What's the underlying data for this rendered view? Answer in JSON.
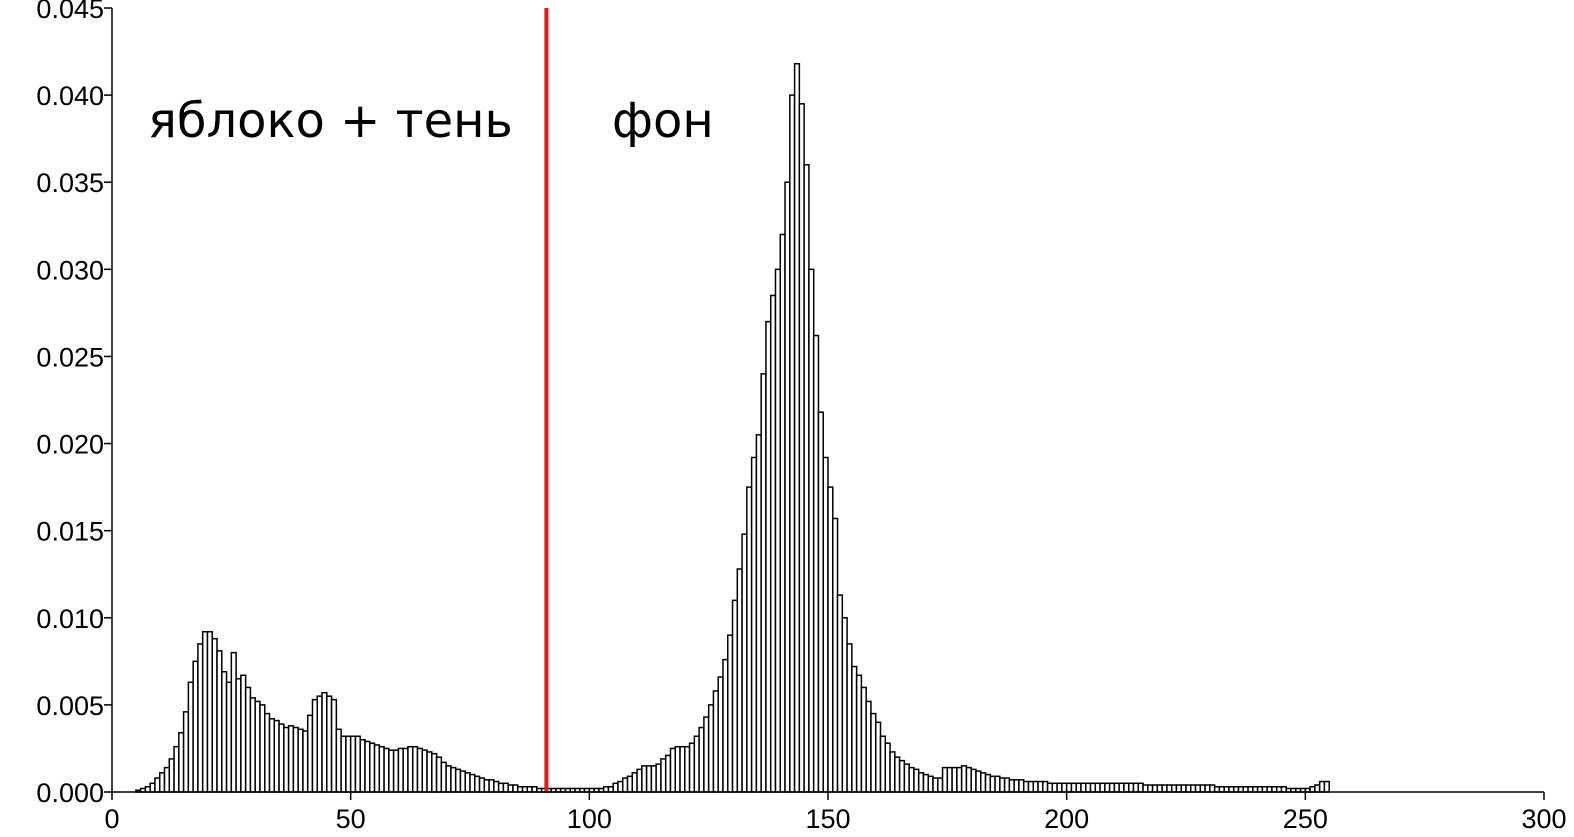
{
  "chart_data": {
    "type": "histogram",
    "annotations": [
      "яблоко + тень",
      "фон"
    ],
    "threshold": 91,
    "threshold_color": "#e31a1c",
    "color": "#ffffff",
    "edgecolor": "#000000",
    "xlim": [
      0,
      300
    ],
    "xticks": [
      0,
      50,
      100,
      150,
      200,
      250,
      300
    ],
    "ylim": [
      0,
      0.045
    ],
    "yticks": [
      {
        "value": 0,
        "label": "0.000"
      },
      {
        "value": 0.005,
        "label": "0.005"
      },
      {
        "value": 0.01,
        "label": "0.010"
      },
      {
        "value": 0.015,
        "label": "0.015"
      },
      {
        "value": 0.02,
        "label": "0.020"
      },
      {
        "value": 0.025,
        "label": "0.025"
      },
      {
        "value": 0.03,
        "label": "0.030"
      },
      {
        "value": 0.035,
        "label": "0.035"
      },
      {
        "value": 0.04,
        "label": "0.040"
      },
      {
        "value": 0.045,
        "label": "0.045"
      }
    ],
    "bins": [
      0,
      1,
      2,
      3,
      4,
      5,
      6,
      7,
      8,
      9,
      10,
      11,
      12,
      13,
      14,
      15,
      16,
      17,
      18,
      19,
      20,
      21,
      22,
      23,
      24,
      25,
      26,
      27,
      28,
      29,
      30,
      31,
      32,
      33,
      34,
      35,
      36,
      37,
      38,
      39,
      40,
      41,
      42,
      43,
      44,
      45,
      46,
      47,
      48,
      49,
      50,
      51,
      52,
      53,
      54,
      55,
      56,
      57,
      58,
      59,
      60,
      61,
      62,
      63,
      64,
      65,
      66,
      67,
      68,
      69,
      70,
      71,
      72,
      73,
      74,
      75,
      76,
      77,
      78,
      79,
      80,
      81,
      82,
      83,
      84,
      85,
      86,
      87,
      88,
      89,
      90,
      91,
      92,
      93,
      94,
      95,
      96,
      97,
      98,
      99,
      100,
      101,
      102,
      103,
      104,
      105,
      106,
      107,
      108,
      109,
      110,
      111,
      112,
      113,
      114,
      115,
      116,
      117,
      118,
      119,
      120,
      121,
      122,
      123,
      124,
      125,
      126,
      127,
      128,
      129,
      130,
      131,
      132,
      133,
      134,
      135,
      136,
      137,
      138,
      139,
      140,
      141,
      142,
      143,
      144,
      145,
      146,
      147,
      148,
      149,
      150,
      151,
      152,
      153,
      154,
      155,
      156,
      157,
      158,
      159,
      160,
      161,
      162,
      163,
      164,
      165,
      166,
      167,
      168,
      169,
      170,
      171,
      172,
      173,
      174,
      175,
      176,
      177,
      178,
      179,
      180,
      181,
      182,
      183,
      184,
      185,
      186,
      187,
      188,
      189,
      190,
      191,
      192,
      193,
      194,
      195,
      196,
      197,
      198,
      199,
      200,
      201,
      202,
      203,
      204,
      205,
      206,
      207,
      208,
      209,
      210,
      211,
      212,
      213,
      214,
      215,
      216,
      217,
      218,
      219,
      220,
      221,
      222,
      223,
      224,
      225,
      226,
      227,
      228,
      229,
      230,
      231,
      232,
      233,
      234,
      235,
      236,
      237,
      238,
      239,
      240,
      241,
      242,
      243,
      244,
      245,
      246,
      247,
      248,
      249,
      250,
      251,
      252,
      253,
      254,
      255,
      256
    ],
    "counts": [
      0,
      0,
      0,
      0,
      0,
      0.0001,
      0.0002,
      0.0003,
      0.0005,
      0.0008,
      0.0011,
      0.0014,
      0.0019,
      0.0026,
      0.0034,
      0.0046,
      0.0063,
      0.0075,
      0.0085,
      0.0092,
      0.0092,
      0.0088,
      0.0081,
      0.0069,
      0.0063,
      0.008,
      0.0065,
      0.0067,
      0.006,
      0.0054,
      0.0052,
      0.005,
      0.0045,
      0.0042,
      0.0041,
      0.0039,
      0.0037,
      0.0038,
      0.0037,
      0.0036,
      0.0035,
      0.0044,
      0.0053,
      0.0055,
      0.0057,
      0.0055,
      0.0053,
      0.0036,
      0.0032,
      0.0032,
      0.0032,
      0.0032,
      0.003,
      0.0029,
      0.0028,
      0.0027,
      0.0026,
      0.0025,
      0.0024,
      0.0024,
      0.0025,
      0.0025,
      0.0026,
      0.0026,
      0.0025,
      0.0024,
      0.0023,
      0.0022,
      0.002,
      0.0017,
      0.0015,
      0.0014,
      0.0013,
      0.0012,
      0.0011,
      0.001,
      0.0009,
      0.0008,
      0.0007,
      0.0007,
      0.0006,
      0.0005,
      0.0005,
      0.0004,
      0.0004,
      0.0003,
      0.0003,
      0.0003,
      0.0003,
      0.0002,
      0.0002,
      0.0002,
      0.0002,
      0.0002,
      0.0002,
      0.0002,
      0.0002,
      0.0002,
      0.0002,
      0.0002,
      0.0002,
      0.0002,
      0.0002,
      0.0003,
      0.0003,
      0.0005,
      0.0006,
      0.0008,
      0.0009,
      0.0011,
      0.0013,
      0.0015,
      0.0015,
      0.0015,
      0.0016,
      0.0019,
      0.0021,
      0.0025,
      0.0026,
      0.0026,
      0.0026,
      0.0028,
      0.0032,
      0.0037,
      0.0043,
      0.005,
      0.0058,
      0.0066,
      0.0076,
      0.009,
      0.011,
      0.0128,
      0.0148,
      0.0175,
      0.0192,
      0.0205,
      0.024,
      0.027,
      0.0285,
      0.03,
      0.032,
      0.035,
      0.04,
      0.0418,
      0.0395,
      0.036,
      0.03,
      0.0262,
      0.0218,
      0.0192,
      0.0175,
      0.0157,
      0.0113,
      0.01,
      0.0085,
      0.0072,
      0.0067,
      0.006,
      0.0052,
      0.0045,
      0.004,
      0.0032,
      0.0028,
      0.0023,
      0.002,
      0.0018,
      0.0016,
      0.0014,
      0.0013,
      0.0011,
      0.001,
      0.0009,
      0.0008,
      0.0008,
      0.0014,
      0.0014,
      0.0014,
      0.0014,
      0.0015,
      0.0014,
      0.0013,
      0.0012,
      0.0011,
      0.001,
      0.0009,
      0.0009,
      0.0008,
      0.0008,
      0.0007,
      0.0007,
      0.0007,
      0.0006,
      0.0006,
      0.0006,
      0.0006,
      0.0006,
      0.0005,
      0.0005,
      0.0005,
      0.0005,
      0.0005,
      0.0005,
      0.0005,
      0.0005,
      0.0005,
      0.0005,
      0.0005,
      0.0005,
      0.0005,
      0.0005,
      0.0005,
      0.0005,
      0.0005,
      0.0005,
      0.0005,
      0.0005,
      0.0004,
      0.0004,
      0.0004,
      0.0004,
      0.0004,
      0.0004,
      0.0004,
      0.0004,
      0.0004,
      0.0004,
      0.0004,
      0.0004,
      0.0004,
      0.0004,
      0.0004,
      0.0003,
      0.0003,
      0.0003,
      0.0003,
      0.0003,
      0.0003,
      0.0003,
      0.0003,
      0.0003,
      0.0003,
      0.0003,
      0.0003,
      0.0003,
      0.0003,
      0.0003,
      0.0002,
      0.0002,
      0.0002,
      0.0002,
      0.0002,
      0.0003,
      0.0004,
      0.0006,
      0.0006,
      0
    ]
  }
}
